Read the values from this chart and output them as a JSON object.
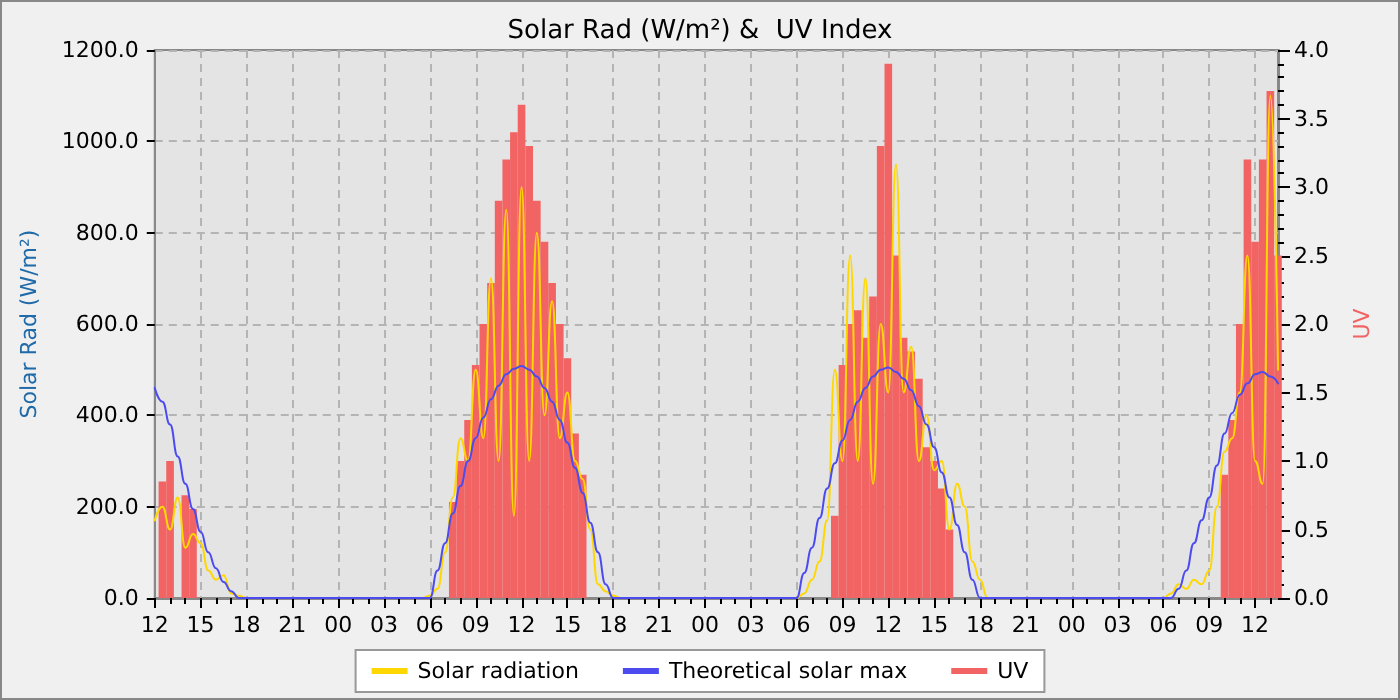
{
  "chart_data": {
    "type": "line",
    "title": "Solar Rad (W/m²) &  UV Index",
    "ylabel": "Solar Rad (W/m²)",
    "y2label": "UV",
    "categories": [
      "12",
      null,
      null,
      null,
      null,
      null,
      "15",
      null,
      null,
      null,
      null,
      null,
      "18",
      null,
      null,
      null,
      null,
      null,
      "21",
      null,
      null,
      null,
      null,
      null,
      "00",
      null,
      null,
      null,
      null,
      null,
      "03",
      null,
      null,
      null,
      null,
      null,
      "06",
      null,
      null,
      null,
      null,
      null,
      "09",
      null,
      null,
      null,
      null,
      null,
      "12",
      null,
      null,
      null,
      null,
      null,
      "15",
      null,
      null,
      null,
      null,
      null,
      "18",
      null,
      null,
      null,
      null,
      null,
      "21",
      null,
      null,
      null,
      null,
      null,
      "00",
      null,
      null,
      null,
      null,
      null,
      "03",
      null,
      null,
      null,
      null,
      null,
      "06",
      null,
      null,
      null,
      null,
      null,
      "09",
      null,
      null,
      null,
      null,
      null,
      "12",
      null,
      null,
      null,
      null,
      null,
      "15",
      null,
      null,
      null,
      null,
      null,
      "18",
      null,
      null,
      null,
      null,
      null,
      "21",
      null,
      null,
      null,
      null,
      null,
      "00",
      null,
      null,
      null,
      null,
      null,
      "03",
      null,
      null,
      null,
      null,
      null,
      "06",
      null,
      null,
      null,
      null,
      null,
      "09",
      null,
      null,
      null,
      null,
      null,
      "12",
      null,
      null,
      null
    ],
    "ylim": [
      0,
      1200
    ],
    "yticks": [
      {
        "value": 0,
        "label": "0.0"
      },
      {
        "value": 200,
        "label": "200.0"
      },
      {
        "value": 400,
        "label": "400.0"
      },
      {
        "value": 600,
        "label": "600.0"
      },
      {
        "value": 800,
        "label": "800.0"
      },
      {
        "value": 1000,
        "label": "1000.0"
      },
      {
        "value": 1200,
        "label": "1200.0"
      }
    ],
    "y2lim": [
      0,
      4
    ],
    "y2ticks": [
      {
        "value": 0,
        "label": "0.0"
      },
      {
        "value": 0.1,
        "label": null
      },
      {
        "value": 0.2,
        "label": null
      },
      {
        "value": 0.3,
        "label": null
      },
      {
        "value": 0.4,
        "label": null
      },
      {
        "value": 0.5,
        "label": "0.5"
      },
      {
        "value": 0.6,
        "label": null
      },
      {
        "value": 0.7,
        "label": null
      },
      {
        "value": 0.8,
        "label": null
      },
      {
        "value": 0.9,
        "label": null
      },
      {
        "value": 1,
        "label": "1.0"
      },
      {
        "value": 1.1,
        "label": null
      },
      {
        "value": 1.2,
        "label": null
      },
      {
        "value": 1.3,
        "label": null
      },
      {
        "value": 1.4,
        "label": null
      },
      {
        "value": 1.5,
        "label": "1.5"
      },
      {
        "value": 1.6,
        "label": null
      },
      {
        "value": 1.7,
        "label": null
      },
      {
        "value": 1.8,
        "label": null
      },
      {
        "value": 1.9,
        "label": null
      },
      {
        "value": 2,
        "label": "2.0"
      },
      {
        "value": 2.1,
        "label": null
      },
      {
        "value": 2.2,
        "label": null
      },
      {
        "value": 2.3,
        "label": null
      },
      {
        "value": 2.4,
        "label": null
      },
      {
        "value": 2.5,
        "label": "2.5"
      },
      {
        "value": 2.6,
        "label": null
      },
      {
        "value": 2.7,
        "label": null
      },
      {
        "value": 2.8,
        "label": null
      },
      {
        "value": 2.9,
        "label": null
      },
      {
        "value": 3,
        "label": "3.0"
      },
      {
        "value": 3.1,
        "label": null
      },
      {
        "value": 3.2,
        "label": null
      },
      {
        "value": 3.3,
        "label": null
      },
      {
        "value": 3.4,
        "label": null
      },
      {
        "value": 3.5,
        "label": "3.5"
      },
      {
        "value": 3.6,
        "label": null
      },
      {
        "value": 3.7,
        "label": null
      },
      {
        "value": 3.8,
        "label": null
      },
      {
        "value": 3.9,
        "label": null
      },
      {
        "value": 4,
        "label": "4.0"
      }
    ],
    "grid": true,
    "legend": "bottom",
    "marker": "none",
    "series": [
      {
        "name": "Solar radiation",
        "color": "#ffd700",
        "values": [
          170,
          200,
          150,
          220,
          110,
          140,
          120,
          60,
          40,
          50,
          10,
          5,
          0,
          0,
          0,
          0,
          0,
          0,
          0,
          0,
          0,
          0,
          0,
          0,
          0,
          0,
          0,
          0,
          0,
          0,
          0,
          0,
          0,
          0,
          0,
          0,
          5,
          20,
          100,
          220,
          350,
          300,
          500,
          350,
          700,
          300,
          850,
          180,
          900,
          300,
          800,
          400,
          650,
          350,
          450,
          300,
          260,
          150,
          30,
          15,
          5,
          0,
          0,
          0,
          0,
          0,
          0,
          0,
          0,
          0,
          0,
          0,
          0,
          0,
          0,
          0,
          0,
          0,
          0,
          0,
          0,
          0,
          0,
          0,
          0,
          10,
          40,
          80,
          170,
          500,
          300,
          750,
          300,
          700,
          250,
          600,
          450,
          950,
          450,
          550,
          300,
          400,
          280,
          300,
          150,
          250,
          200,
          80,
          40,
          0,
          0,
          0,
          0,
          0,
          0,
          0,
          0,
          0,
          0,
          0,
          0,
          0,
          0,
          0,
          0,
          0,
          0,
          0,
          0,
          0,
          0,
          0,
          0,
          10,
          30,
          20,
          40,
          30,
          60,
          200,
          320,
          350,
          450,
          750,
          300,
          250,
          1100,
          500
        ]
      },
      {
        "name": "Theoretical solar max",
        "color": "#4b4bf0",
        "values": [
          460,
          430,
          380,
          310,
          250,
          195,
          145,
          100,
          65,
          35,
          15,
          0,
          0,
          0,
          0,
          0,
          0,
          0,
          0,
          0,
          0,
          0,
          0,
          0,
          0,
          0,
          0,
          0,
          0,
          0,
          0,
          0,
          0,
          0,
          0,
          0,
          0,
          60,
          120,
          185,
          245,
          300,
          350,
          395,
          435,
          465,
          490,
          502,
          508,
          500,
          485,
          460,
          430,
          390,
          340,
          285,
          230,
          165,
          100,
          30,
          0,
          0,
          0,
          0,
          0,
          0,
          0,
          0,
          0,
          0,
          0,
          0,
          0,
          0,
          0,
          0,
          0,
          0,
          0,
          0,
          0,
          0,
          0,
          0,
          0,
          55,
          110,
          175,
          240,
          295,
          345,
          390,
          430,
          460,
          485,
          500,
          505,
          495,
          480,
          455,
          420,
          380,
          330,
          275,
          220,
          160,
          100,
          40,
          0,
          0,
          0,
          0,
          0,
          0,
          0,
          0,
          0,
          0,
          0,
          0,
          0,
          0,
          0,
          0,
          0,
          0,
          0,
          0,
          0,
          0,
          0,
          0,
          0,
          0,
          20,
          60,
          120,
          170,
          220,
          290,
          360,
          405,
          445,
          470,
          490,
          495,
          485,
          470
        ]
      },
      {
        "type": "bar",
        "name": "UV",
        "color": "#f26464",
        "axis": "y2",
        "values": [
          null,
          0.85,
          1.0,
          null,
          0.75,
          0.65,
          null,
          null,
          null,
          null,
          null,
          null,
          null,
          null,
          null,
          null,
          null,
          null,
          null,
          null,
          null,
          null,
          null,
          null,
          null,
          null,
          null,
          null,
          null,
          null,
          null,
          null,
          null,
          null,
          null,
          null,
          null,
          null,
          null,
          0.7,
          1.0,
          1.3,
          1.7,
          2.0,
          2.3,
          2.9,
          3.2,
          3.4,
          3.6,
          3.3,
          2.9,
          2.6,
          2.3,
          2.0,
          1.75,
          1.2,
          0.9,
          null,
          null,
          null,
          null,
          null,
          null,
          null,
          null,
          null,
          null,
          null,
          null,
          null,
          null,
          null,
          null,
          null,
          null,
          null,
          null,
          null,
          null,
          null,
          null,
          null,
          null,
          null,
          null,
          null,
          null,
          null,
          null,
          0.6,
          1.7,
          2.0,
          2.1,
          1.9,
          2.2,
          3.3,
          3.9,
          2.5,
          1.9,
          1.8,
          1.6,
          1.1,
          1.0,
          0.8,
          0.5,
          null,
          null,
          null,
          null,
          null,
          null,
          null,
          null,
          null,
          null,
          null,
          null,
          null,
          null,
          null,
          null,
          null,
          null,
          null,
          null,
          null,
          null,
          null,
          null,
          null,
          null,
          null,
          null,
          null,
          null,
          null,
          null,
          null,
          null,
          null,
          0.9,
          1.3,
          2.0,
          3.2,
          2.6,
          3.2,
          3.7,
          2.5
        ]
      }
    ]
  }
}
